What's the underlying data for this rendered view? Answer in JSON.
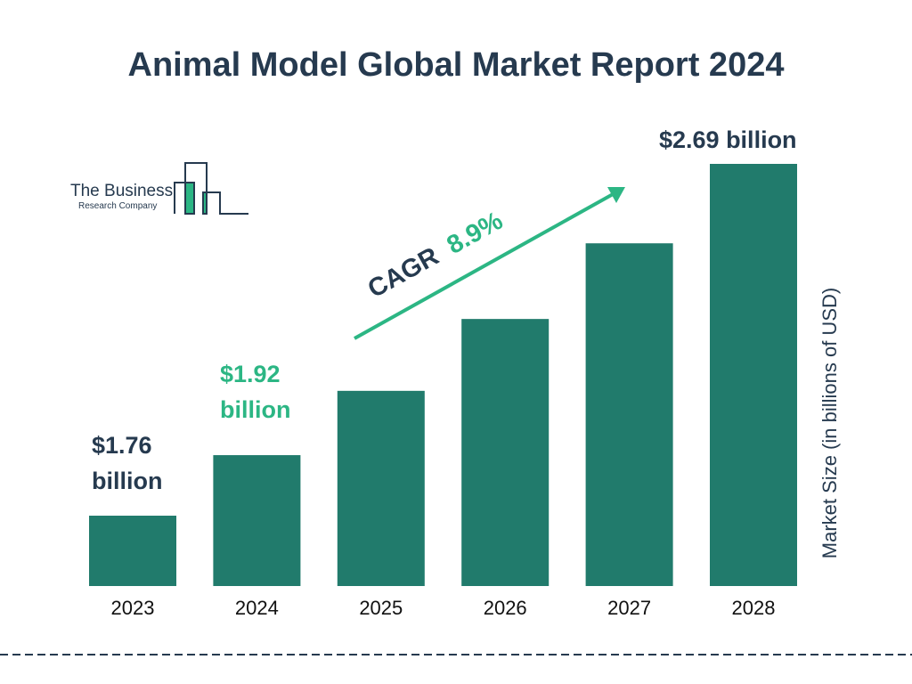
{
  "chart_data": {
    "type": "bar",
    "title": "Animal Model Global Market Report 2024",
    "xlabel": "",
    "ylabel": "Market Size (in billions of USD)",
    "categories": [
      "2023",
      "2024",
      "2025",
      "2026",
      "2027",
      "2028"
    ],
    "values": [
      1.76,
      1.92,
      2.09,
      2.28,
      2.48,
      2.69
    ],
    "data_labels": {
      "2023": "$1.76 billion",
      "2024": "$1.92 billion",
      "2028": "$2.69 billion"
    },
    "annotation": {
      "cagr_label": "CAGR",
      "cagr_value": "8.9%"
    },
    "grid": false,
    "bar_color": "#217b6c",
    "accent_color": "#2cb684",
    "text_color": "#263a4f"
  },
  "labels": {
    "l2023a": "$1.76",
    "l2023b": "billion",
    "l2024a": "$1.92",
    "l2024b": "billion",
    "l2028": "$2.69 billion"
  },
  "logo": {
    "line1": "The Business",
    "line2": "Research Company"
  }
}
